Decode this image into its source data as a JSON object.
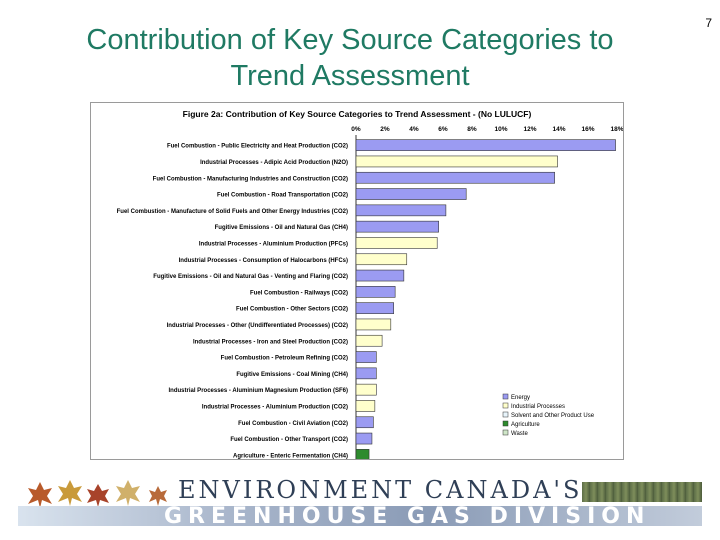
{
  "slide": {
    "title_line1": "Contribution of Key Source Categories to",
    "title_line2": "Trend Assessment",
    "page_number": "7"
  },
  "banner": {
    "line1": "ENVIRONMENT CANADA'S",
    "line2": "GREENHOUSE GAS DIVISION"
  },
  "colors": {
    "Energy": "#9b9bf2",
    "Industrial Processes": "#ffffcc",
    "Solvent and Other Product Use": "#e8f4fb",
    "Agriculture": "#2e8b2e",
    "Waste": "#cfe6c8"
  },
  "chart_data": {
    "type": "bar",
    "orientation": "horizontal",
    "title": "Figure 2a: Contribution of Key Source Categories to Trend Assessment - (No LULUCF)",
    "xlim": [
      0,
      18
    ],
    "x_ticks": [
      "0%",
      "2%",
      "4%",
      "6%",
      "8%",
      "10%",
      "12%",
      "14%",
      "16%",
      "18%"
    ],
    "categories": [
      "Fuel Combustion - Public Electricity and Heat Production (CO2)",
      "Industrial Processes - Adipic Acid Production (N2O)",
      "Fuel Combustion - Manufacturing Industries and Construction (CO2)",
      "Fuel Combustion - Road Transportation (CO2)",
      "Fuel Combustion - Manufacture of Solid Fuels and Other Energy Industries (CO2)",
      "Fugitive Emissions - Oil and Natural Gas (CH4)",
      "Industrial Processes - Aluminium Production (PFCs)",
      "Industrial Processes - Consumption of Halocarbons (HFCs)",
      "Fugitive Emissions - Oil and Natural Gas - Venting and Flaring (CO2)",
      "Fuel Combustion - Railways (CO2)",
      "Fuel Combustion - Other Sectors (CO2)",
      "Industrial Processes - Other (Undifferentiated Processes) (CO2)",
      "Industrial Processes - Iron and Steel Production (CO2)",
      "Fuel Combustion - Petroleum Refining (CO2)",
      "Fugitive Emissions - Coal Mining (CH4)",
      "Industrial Processes - Aluminium Magnesium Production (SF6)",
      "Industrial Processes - Aluminium Production (CO2)",
      "Fuel Combustion - Civil Aviation (CO2)",
      "Fuel Combustion - Other Transport (CO2)",
      "Agriculture - Enteric Fermentation (CH4)"
    ],
    "values": [
      17.9,
      13.9,
      13.7,
      7.6,
      6.2,
      5.7,
      5.6,
      3.5,
      3.3,
      2.7,
      2.6,
      2.4,
      1.8,
      1.4,
      1.4,
      1.4,
      1.3,
      1.2,
      1.1,
      0.9
    ],
    "groups": [
      "Energy",
      "Industrial Processes",
      "Energy",
      "Energy",
      "Energy",
      "Energy",
      "Industrial Processes",
      "Industrial Processes",
      "Energy",
      "Energy",
      "Energy",
      "Industrial Processes",
      "Industrial Processes",
      "Energy",
      "Energy",
      "Industrial Processes",
      "Industrial Processes",
      "Energy",
      "Energy",
      "Agriculture"
    ],
    "legend": [
      "Energy",
      "Industrial Processes",
      "Solvent and Other Product Use",
      "Agriculture",
      "Waste"
    ],
    "legend_position": "bottom-right",
    "grid": false
  }
}
